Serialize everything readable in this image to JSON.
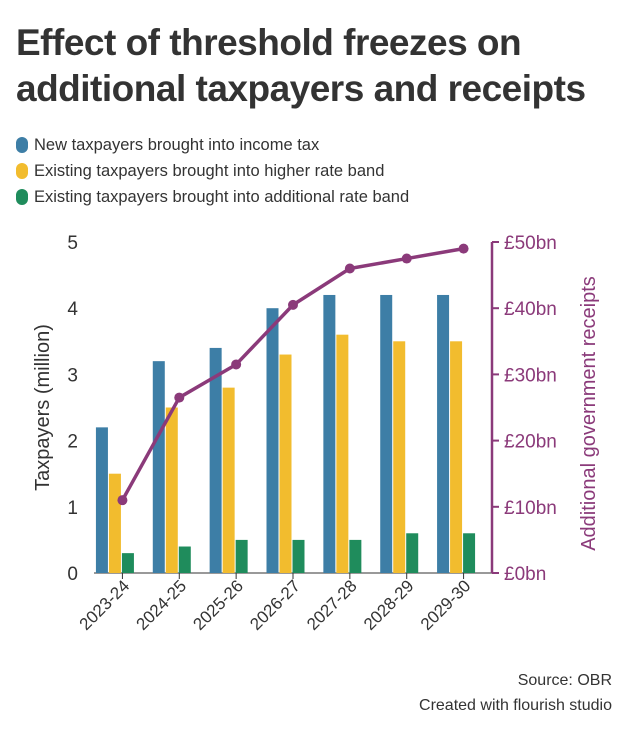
{
  "title": "Effect of threshold freezes on additional taxpayers and receipts",
  "footer": {
    "source": "Source: OBR",
    "created": "Created with flourish studio"
  },
  "colors": {
    "new": "#3d7ea6",
    "higher": "#f2bc2e",
    "additional": "#1f8c5c",
    "line": "#8b3a7a",
    "axis": "#333333"
  },
  "chart_data": {
    "type": "bar",
    "title": "Effect of threshold freezes on additional taxpayers and receipts",
    "categories": [
      "2023-24",
      "2024-25",
      "2025-26",
      "2026-27",
      "2027-28",
      "2028-29",
      "2029-30"
    ],
    "series": [
      {
        "name": "New taxpayers brought into income tax",
        "values": [
          2.2,
          3.2,
          3.4,
          4.0,
          4.2,
          4.2,
          4.2
        ]
      },
      {
        "name": "Existing taxpayers brought into higher rate band",
        "values": [
          1.5,
          2.5,
          2.8,
          3.3,
          3.6,
          3.5,
          3.5
        ]
      },
      {
        "name": "Existing taxpayers brought into additional rate band",
        "values": [
          0.3,
          0.4,
          0.5,
          0.5,
          0.5,
          0.6,
          0.6
        ]
      }
    ],
    "line_series": {
      "name": "Additional government receipts",
      "values": [
        11,
        26.5,
        31.5,
        40.5,
        46,
        47.5,
        49
      ]
    },
    "ylabel": "Taxpayers (million)",
    "y2label": "Additional government receipts",
    "ylim": [
      0,
      5
    ],
    "y2lim": [
      0,
      50
    ],
    "yticks": [
      "0",
      "1",
      "2",
      "3",
      "4",
      "5"
    ],
    "y2ticks": [
      "£0bn",
      "£10bn",
      "£20bn",
      "£30bn",
      "£40bn",
      "£50bn"
    ]
  }
}
